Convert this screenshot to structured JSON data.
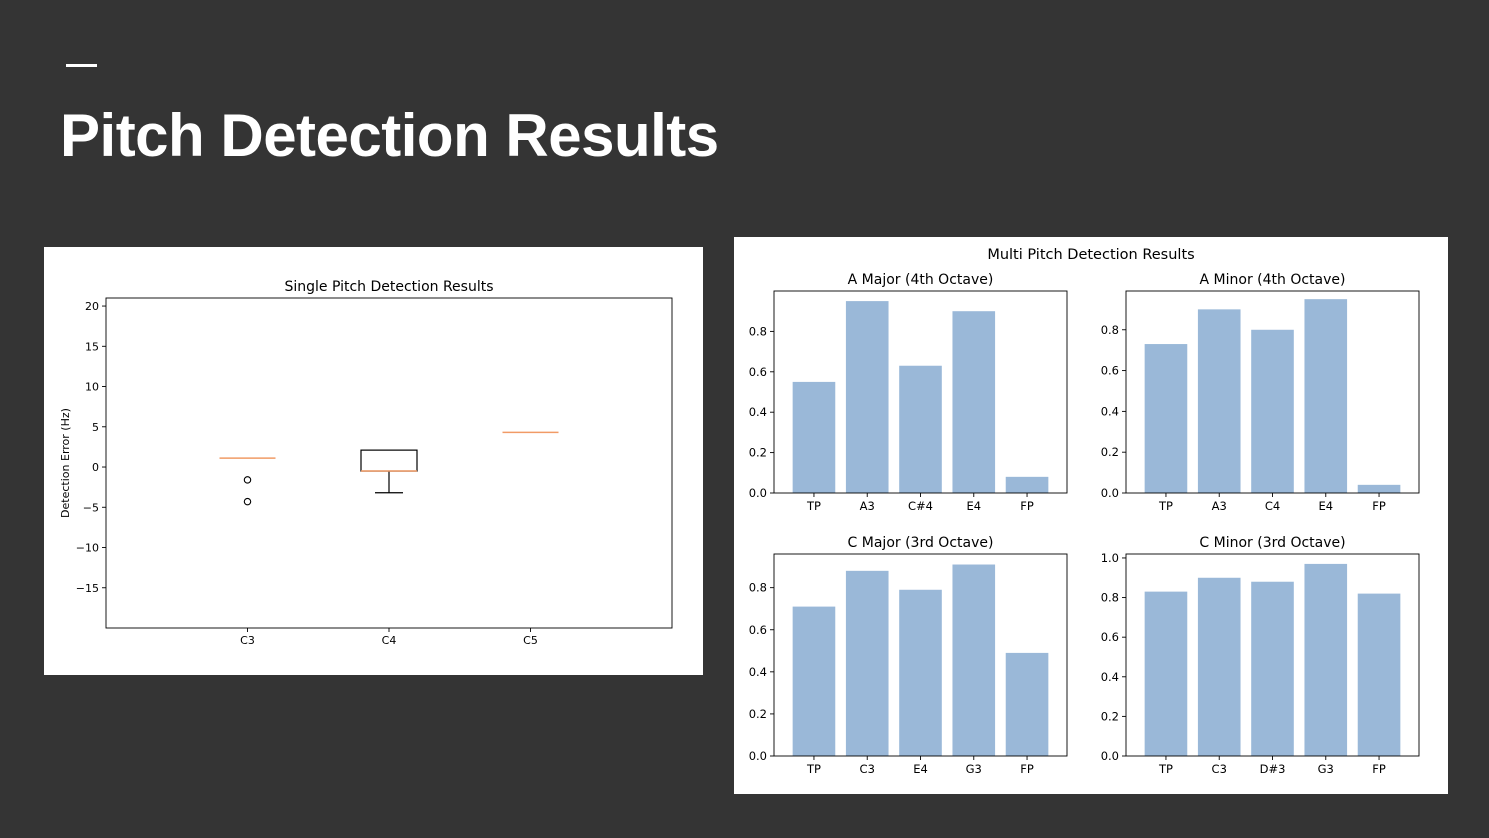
{
  "slide": {
    "title": "Pitch Detection Results"
  },
  "colors": {
    "background": "#343434",
    "title": "#ffffff",
    "median_line": "#f19b66",
    "bar": "#9ab8d8"
  },
  "chart_data": [
    {
      "type": "box",
      "title": "Single Pitch Detection Results",
      "xlabel": "",
      "ylabel": "Detection Error (Hz)",
      "ylim": [
        -20,
        21
      ],
      "yticks": [
        20,
        15,
        10,
        5,
        0,
        -5,
        -10,
        -15
      ],
      "ytick_labels": [
        "20",
        "15",
        "10",
        "5",
        "0",
        "−5",
        "−10",
        "−15"
      ],
      "categories": [
        "C3",
        "C4",
        "C5"
      ],
      "boxes": [
        {
          "q1": 1.1,
          "median": 1.1,
          "q3": 1.1,
          "whisker_low": 1.1,
          "whisker_high": 1.1,
          "outliers": [
            -1.6,
            -4.3
          ]
        },
        {
          "q1": -0.5,
          "median": -0.5,
          "q3": 2.1,
          "whisker_low": -3.2,
          "whisker_high": 2.1,
          "outliers": []
        },
        {
          "q1": 4.3,
          "median": 4.3,
          "q3": 4.3,
          "whisker_low": 4.3,
          "whisker_high": 4.3,
          "outliers": []
        }
      ]
    },
    {
      "type": "bar",
      "suptitle": "Multi Pitch Detection Results",
      "subplots": [
        {
          "title": "A Major (4th Octave)",
          "categories": [
            "TP",
            "A3",
            "C#4",
            "E4",
            "FP"
          ],
          "values": [
            0.55,
            0.95,
            0.63,
            0.9,
            0.08
          ],
          "ylim": [
            0,
            1.0
          ],
          "yticks": [
            "0.0",
            "0.2",
            "0.4",
            "0.6",
            "0.8"
          ]
        },
        {
          "title": "A Minor (4th Octave)",
          "categories": [
            "TP",
            "A3",
            "C4",
            "E4",
            "FP"
          ],
          "values": [
            0.73,
            0.9,
            0.8,
            0.95,
            0.04
          ],
          "ylim": [
            0,
            0.99
          ],
          "yticks": [
            "0.0",
            "0.2",
            "0.4",
            "0.6",
            "0.8"
          ]
        },
        {
          "title": "C Major (3rd Octave)",
          "categories": [
            "TP",
            "C3",
            "E4",
            "G3",
            "FP"
          ],
          "values": [
            0.71,
            0.88,
            0.79,
            0.91,
            0.49
          ],
          "ylim": [
            0,
            0.96
          ],
          "yticks": [
            "0.0",
            "0.2",
            "0.4",
            "0.6",
            "0.8"
          ]
        },
        {
          "title": "C Minor (3rd Octave)",
          "categories": [
            "TP",
            "C3",
            "D#3",
            "G3",
            "FP"
          ],
          "values": [
            0.83,
            0.9,
            0.88,
            0.97,
            0.82
          ],
          "ylim": [
            0,
            1.02
          ],
          "yticks": [
            "0.0",
            "0.2",
            "0.4",
            "0.6",
            "0.8",
            "1.0"
          ]
        }
      ]
    }
  ]
}
